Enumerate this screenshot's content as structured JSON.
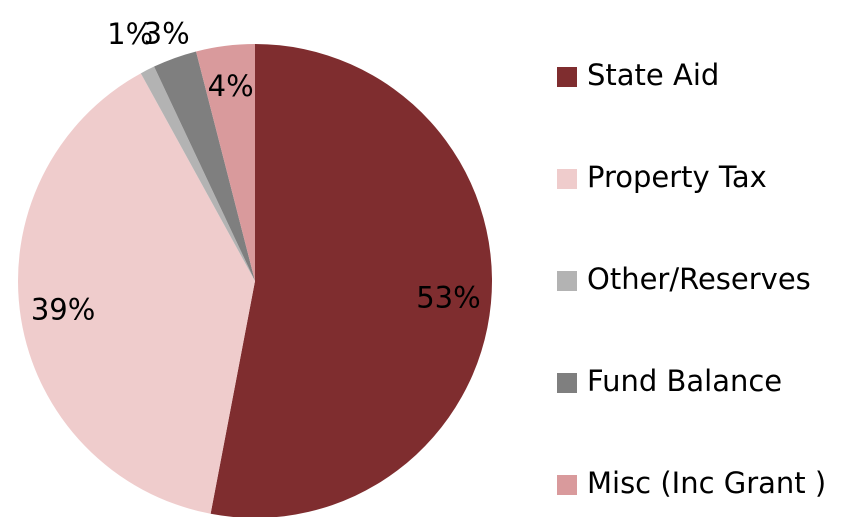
{
  "chart_data": {
    "type": "pie",
    "categories": [
      "State Aid",
      "Property Tax",
      "Other/Reserves",
      "Fund Balance",
      "Misc (Inc Grant )"
    ],
    "values": [
      53,
      39,
      1,
      3,
      4
    ],
    "value_labels": [
      "53%",
      "39%",
      "1%",
      "3%",
      "4%"
    ],
    "colors": [
      "#7f2d2f",
      "#efcccc",
      "#b3b3b3",
      "#7f7f7f",
      "#d99a9c"
    ],
    "legend": "right"
  }
}
